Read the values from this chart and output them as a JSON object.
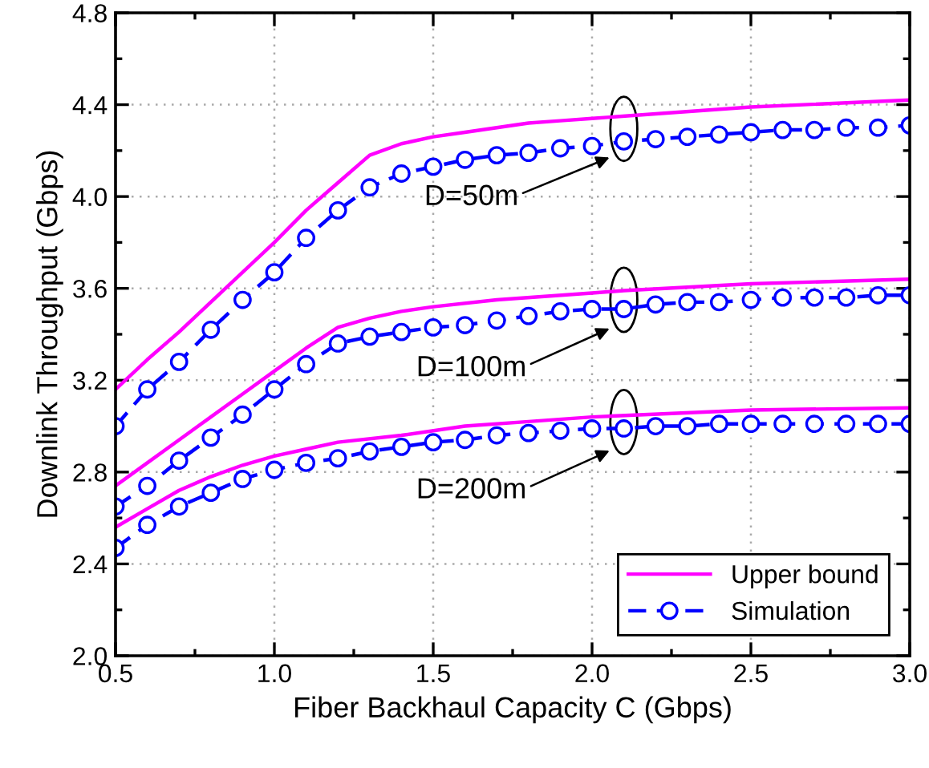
{
  "chart_data": {
    "type": "line",
    "xlabel": "Fiber Backhaul Capacity C (Gbps)",
    "ylabel": "Downlink Throughput (Gbps)",
    "xlim": [
      0.5,
      3.0
    ],
    "ylim": [
      2.0,
      4.8
    ],
    "xticks": [
      0.5,
      {
        "value": 1,
        "label": "1.0"
      },
      1.5,
      {
        "value": 2,
        "label": "2.0"
      },
      2.5,
      {
        "value": 3,
        "label": "3.0"
      }
    ],
    "yticks": [
      {
        "value": 2,
        "label": "2.0"
      },
      2.4,
      2.8,
      3.2,
      3.6,
      {
        "value": 4,
        "label": "4.0"
      },
      4.4,
      4.8
    ],
    "grid": true,
    "legend": "bottom right",
    "series": [
      {
        "name": "Upper bound",
        "color": "#ff00ff",
        "marker": "none",
        "line_style": "solid",
        "x": [
          0.5,
          0.6,
          0.7,
          0.8,
          0.9,
          1.0,
          1.1,
          1.2,
          1.3,
          1.4,
          1.5,
          1.6,
          1.7,
          1.8,
          1.9,
          2.0,
          2.2,
          2.5,
          3.0
        ],
        "values": [
          3.16,
          3.29,
          3.41,
          3.54,
          3.67,
          3.8,
          3.94,
          4.06,
          4.18,
          4.23,
          4.26,
          4.28,
          4.3,
          4.32,
          4.33,
          4.34,
          4.36,
          4.39,
          4.42
        ]
      },
      {
        "name": "Simulation",
        "color": "#0000ff",
        "marker": "circle",
        "line_style": "dashed",
        "x": [
          0.5,
          0.6,
          0.7,
          0.8,
          0.9,
          1.0,
          1.1,
          1.2,
          1.3,
          1.4,
          1.5,
          1.6,
          1.7,
          1.8,
          1.9,
          2.0,
          2.1,
          2.2,
          2.3,
          2.4,
          2.5,
          2.6,
          2.7,
          2.8,
          2.9,
          3.0
        ],
        "values": [
          3.0,
          3.16,
          3.28,
          3.42,
          3.55,
          3.67,
          3.82,
          3.94,
          4.04,
          4.1,
          4.13,
          4.16,
          4.18,
          4.19,
          4.21,
          4.22,
          4.24,
          4.25,
          4.26,
          4.27,
          4.28,
          4.29,
          4.29,
          4.3,
          4.3,
          4.31
        ]
      },
      {
        "color": "#ff00ff",
        "marker": "none",
        "line_style": "solid",
        "x": [
          0.5,
          0.6,
          0.7,
          0.8,
          0.9,
          1.0,
          1.1,
          1.2,
          1.3,
          1.4,
          1.5,
          1.7,
          2.0,
          2.1,
          2.5,
          3.0
        ],
        "values": [
          2.74,
          2.84,
          2.94,
          3.04,
          3.14,
          3.24,
          3.34,
          3.43,
          3.47,
          3.5,
          3.52,
          3.55,
          3.58,
          3.59,
          3.62,
          3.64
        ]
      },
      {
        "color": "#0000ff",
        "marker": "circle",
        "line_style": "dashed",
        "x": [
          0.5,
          0.6,
          0.7,
          0.8,
          0.9,
          1.0,
          1.1,
          1.2,
          1.3,
          1.4,
          1.5,
          1.6,
          1.7,
          1.8,
          1.9,
          2.0,
          2.1,
          2.2,
          2.3,
          2.4,
          2.5,
          2.6,
          2.7,
          2.8,
          2.9,
          3.0
        ],
        "values": [
          2.65,
          2.74,
          2.85,
          2.95,
          3.05,
          3.16,
          3.27,
          3.36,
          3.39,
          3.41,
          3.43,
          3.44,
          3.46,
          3.48,
          3.5,
          3.51,
          3.51,
          3.53,
          3.54,
          3.54,
          3.55,
          3.56,
          3.56,
          3.56,
          3.57,
          3.57
        ]
      },
      {
        "color": "#ff00ff",
        "marker": "none",
        "line_style": "solid",
        "x": [
          0.5,
          0.6,
          0.7,
          0.8,
          0.9,
          1.0,
          1.1,
          1.2,
          1.4,
          1.6,
          1.8,
          2.0,
          2.5,
          3.0
        ],
        "values": [
          2.56,
          2.64,
          2.72,
          2.78,
          2.83,
          2.87,
          2.9,
          2.93,
          2.96,
          3.0,
          3.02,
          3.04,
          3.07,
          3.08
        ]
      },
      {
        "color": "#0000ff",
        "marker": "circle",
        "line_style": "dashed",
        "x": [
          0.5,
          0.6,
          0.7,
          0.8,
          0.9,
          1.0,
          1.1,
          1.2,
          1.3,
          1.4,
          1.5,
          1.6,
          1.7,
          1.8,
          1.9,
          2.0,
          2.1,
          2.2,
          2.3,
          2.4,
          2.5,
          2.6,
          2.7,
          2.8,
          2.9,
          3.0
        ],
        "values": [
          2.47,
          2.57,
          2.65,
          2.71,
          2.77,
          2.81,
          2.84,
          2.86,
          2.89,
          2.91,
          2.93,
          2.94,
          2.96,
          2.97,
          2.98,
          2.99,
          2.99,
          3.0,
          3.0,
          3.01,
          3.01,
          3.01,
          3.01,
          3.01,
          3.01,
          3.01
        ]
      }
    ],
    "annotations": [
      "D=50m",
      "D=100m",
      "D=200m"
    ]
  }
}
